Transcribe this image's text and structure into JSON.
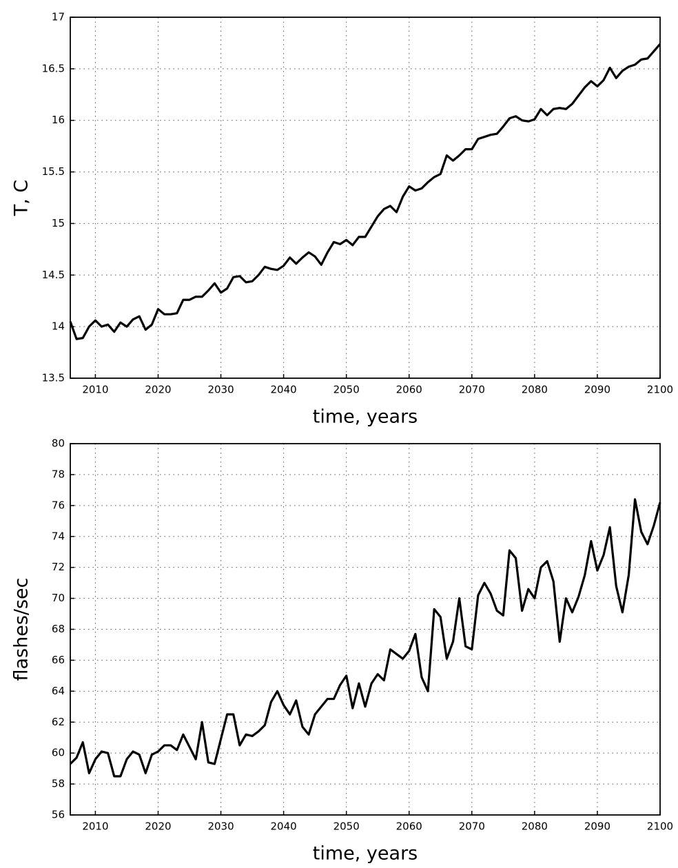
{
  "chart_data": [
    {
      "type": "line",
      "x_label": "time, years",
      "y_label": "T, C",
      "x": [
        2006,
        2007,
        2008,
        2009,
        2010,
        2011,
        2012,
        2013,
        2014,
        2015,
        2016,
        2017,
        2018,
        2019,
        2020,
        2021,
        2022,
        2023,
        2024,
        2025,
        2026,
        2027,
        2028,
        2029,
        2030,
        2031,
        2032,
        2033,
        2034,
        2035,
        2036,
        2037,
        2038,
        2039,
        2040,
        2041,
        2042,
        2043,
        2044,
        2045,
        2046,
        2047,
        2048,
        2049,
        2050,
        2051,
        2052,
        2053,
        2054,
        2055,
        2056,
        2057,
        2058,
        2059,
        2060,
        2061,
        2062,
        2063,
        2064,
        2065,
        2066,
        2067,
        2068,
        2069,
        2070,
        2071,
        2072,
        2073,
        2074,
        2075,
        2076,
        2077,
        2078,
        2079,
        2080,
        2081,
        2082,
        2083,
        2084,
        2085,
        2086,
        2087,
        2088,
        2089,
        2090,
        2091,
        2092,
        2093,
        2094,
        2095,
        2096,
        2097,
        2098,
        2099,
        2100
      ],
      "values": [
        14.05,
        13.88,
        13.89,
        14.0,
        14.06,
        14.0,
        14.02,
        13.95,
        14.04,
        14.0,
        14.07,
        14.1,
        13.97,
        14.02,
        14.17,
        14.12,
        14.12,
        14.13,
        14.26,
        14.26,
        14.29,
        14.29,
        14.35,
        14.42,
        14.33,
        14.37,
        14.48,
        14.49,
        14.43,
        14.44,
        14.5,
        14.58,
        14.56,
        14.55,
        14.59,
        14.67,
        14.61,
        14.67,
        14.72,
        14.68,
        14.6,
        14.72,
        14.82,
        14.8,
        14.84,
        14.79,
        14.87,
        14.87,
        14.97,
        15.07,
        15.14,
        15.17,
        15.11,
        15.26,
        15.36,
        15.32,
        15.34,
        15.4,
        15.45,
        15.48,
        15.66,
        15.61,
        15.66,
        15.72,
        15.72,
        15.82,
        15.84,
        15.86,
        15.87,
        15.94,
        16.02,
        16.04,
        16.0,
        15.99,
        16.01,
        16.11,
        16.05,
        16.11,
        16.12,
        16.11,
        16.16,
        16.24,
        16.32,
        16.38,
        16.33,
        16.39,
        16.51,
        16.41,
        16.48,
        16.52,
        16.54,
        16.59,
        16.6,
        16.67,
        16.74
      ],
      "color": "#000000",
      "xlim": [
        2006,
        2100
      ],
      "xticks": [
        2010,
        2020,
        2030,
        2040,
        2050,
        2060,
        2070,
        2080,
        2090,
        2100
      ],
      "ylim": [
        13.5,
        17
      ],
      "yticks": [
        13.5,
        14,
        14.5,
        15,
        15.5,
        16,
        16.5,
        17
      ],
      "grid": true
    },
    {
      "type": "line",
      "x_label": "time, years",
      "y_label": "flashes/sec",
      "x": [
        2006,
        2007,
        2008,
        2009,
        2010,
        2011,
        2012,
        2013,
        2014,
        2015,
        2016,
        2017,
        2018,
        2019,
        2020,
        2021,
        2022,
        2023,
        2024,
        2025,
        2026,
        2027,
        2028,
        2029,
        2030,
        2031,
        2032,
        2033,
        2034,
        2035,
        2036,
        2037,
        2038,
        2039,
        2040,
        2041,
        2042,
        2043,
        2044,
        2045,
        2046,
        2047,
        2048,
        2049,
        2050,
        2051,
        2052,
        2053,
        2054,
        2055,
        2056,
        2057,
        2058,
        2059,
        2060,
        2061,
        2062,
        2063,
        2064,
        2065,
        2066,
        2067,
        2068,
        2069,
        2070,
        2071,
        2072,
        2073,
        2074,
        2075,
        2076,
        2077,
        2078,
        2079,
        2080,
        2081,
        2082,
        2083,
        2084,
        2085,
        2086,
        2087,
        2088,
        2089,
        2090,
        2091,
        2092,
        2093,
        2094,
        2095,
        2096,
        2097,
        2098,
        2099,
        2100
      ],
      "values": [
        59.3,
        59.7,
        60.7,
        58.7,
        59.6,
        60.1,
        60.0,
        58.5,
        58.5,
        59.6,
        60.1,
        59.9,
        58.7,
        59.9,
        60.1,
        60.5,
        60.5,
        60.2,
        61.2,
        60.4,
        59.6,
        62.0,
        59.4,
        59.3,
        60.9,
        62.5,
        62.5,
        60.5,
        61.2,
        61.1,
        61.4,
        61.8,
        63.3,
        64.0,
        63.1,
        62.5,
        63.4,
        61.7,
        61.2,
        62.5,
        63.0,
        63.5,
        63.5,
        64.4,
        65.0,
        62.9,
        64.5,
        63.0,
        64.5,
        65.1,
        64.7,
        66.7,
        66.4,
        66.1,
        66.6,
        67.7,
        64.9,
        64.0,
        69.3,
        68.8,
        66.1,
        67.2,
        70.0,
        66.9,
        66.7,
        70.2,
        71.0,
        70.3,
        69.2,
        68.9,
        73.1,
        72.6,
        69.2,
        70.6,
        70.0,
        72.0,
        72.4,
        71.1,
        67.2,
        70.0,
        69.1,
        70.1,
        71.5,
        73.7,
        71.8,
        72.8,
        74.6,
        70.8,
        69.1,
        71.5,
        76.4,
        74.3,
        73.5,
        74.7,
        76.2
      ],
      "color": "#000000",
      "xlim": [
        2006,
        2100
      ],
      "xticks": [
        2010,
        2020,
        2030,
        2040,
        2050,
        2060,
        2070,
        2080,
        2090,
        2100
      ],
      "ylim": [
        56,
        80
      ],
      "yticks": [
        56,
        58,
        60,
        62,
        64,
        66,
        68,
        70,
        72,
        74,
        76,
        78,
        80
      ],
      "grid": true
    }
  ]
}
